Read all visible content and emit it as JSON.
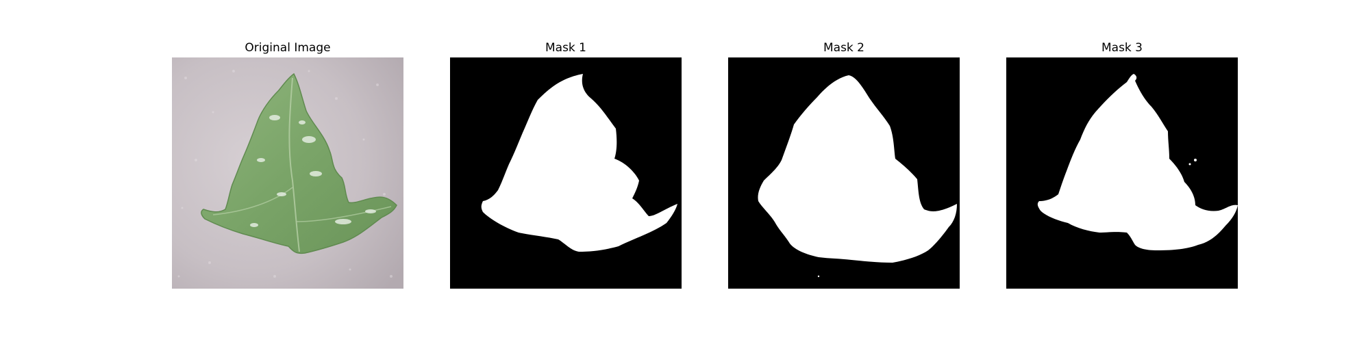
{
  "figure": {
    "panels": [
      {
        "title": "Original Image",
        "kind": "photo",
        "subject": "leaf"
      },
      {
        "title": "Mask 1",
        "kind": "mask"
      },
      {
        "title": "Mask 2",
        "kind": "mask"
      },
      {
        "title": "Mask 3",
        "kind": "mask"
      }
    ]
  },
  "colors": {
    "background": "#ffffff",
    "mask_background": "#000000",
    "mask_foreground": "#ffffff",
    "leaf_green": "#7fa86f",
    "photo_background": "#c9c1c6"
  }
}
